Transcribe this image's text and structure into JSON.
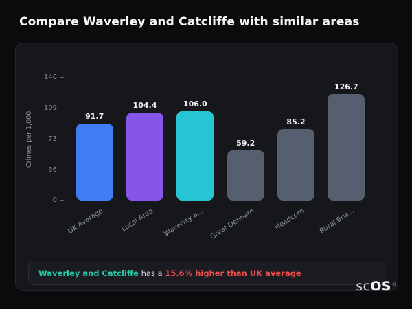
{
  "page": {
    "title": "Compare Waverley and Catcliffe with similar areas"
  },
  "chart_data": {
    "type": "bar",
    "title": "Compare Waverley and Catcliffe with similar areas",
    "categories": [
      "UK Average",
      "Local Area",
      "Waverley a...",
      "Great Denham",
      "Headcorn",
      "Rural Bris..."
    ],
    "values": [
      91.7,
      104.4,
      106.0,
      59.2,
      85.2,
      126.7
    ],
    "value_labels": [
      "91.7",
      "104.4",
      "106.0",
      "59.2",
      "85.2",
      "126.7"
    ],
    "xlabel": "",
    "ylabel": "Crimes per 1,000",
    "ylim": [
      0,
      146
    ],
    "yticks": [
      146,
      109,
      73,
      36,
      0
    ],
    "grid": false,
    "legend": false,
    "bar_colors": [
      "#3e7df2",
      "#8656e8",
      "#27c4d4",
      "#555f70",
      "#555f70",
      "#555f70"
    ]
  },
  "callout": {
    "area": "Waverley and Catcliffe",
    "connector": " has a ",
    "stat": "15.6% higher than UK average",
    "accent_teal": "#28c8a8",
    "accent_red": "#ef4d4d"
  },
  "footer": {
    "logo_sc": "sc",
    "logo_os": "OS",
    "logo_reg": "®"
  }
}
